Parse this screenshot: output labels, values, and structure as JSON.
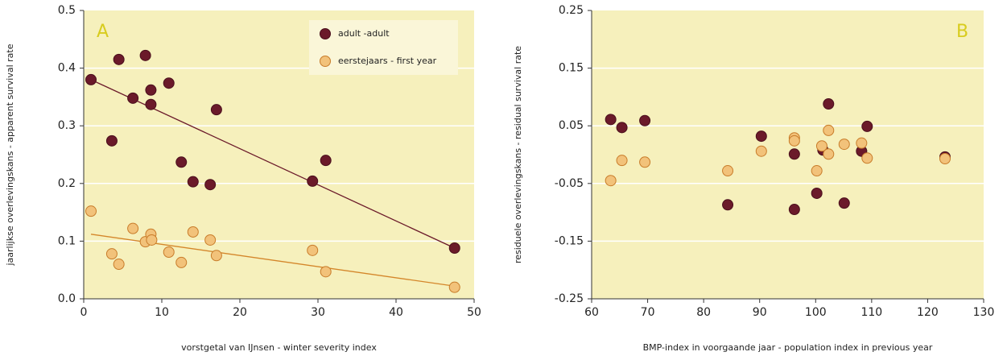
{
  "chart_data": [
    {
      "type": "scatter",
      "label": "A",
      "xlabel": "vorstgetal van IJnsen - winter severity index",
      "ylabel": "jaarlijkse overlevingskans - apparent survival rate",
      "xlim": [
        0,
        50
      ],
      "xticks": [
        0,
        10,
        20,
        30,
        40,
        50
      ],
      "ylim": [
        0,
        0.5
      ],
      "yticks": [
        {
          "value": 0,
          "label": "0.0"
        },
        0.1,
        0.2,
        0.3,
        0.4,
        0.5
      ],
      "grid": true,
      "legend": "upper right",
      "series": [
        {
          "name": "adult -adult",
          "color": "#6b1a2a",
          "edge": "#4a0f1c",
          "x": [
            0.93,
            4.5,
            7.9,
            3.6,
            6.3,
            8.6,
            8.6,
            10.9,
            17.0,
            12.5,
            14.0,
            16.2,
            29.3,
            31.0,
            47.5
          ],
          "y": [
            0.38,
            0.415,
            0.422,
            0.274,
            0.348,
            0.362,
            0.337,
            0.374,
            0.328,
            0.237,
            0.203,
            0.198,
            0.204,
            0.24,
            0.088
          ],
          "trend": {
            "color": "#6b1a2a",
            "x": [
              0.93,
              47.5
            ],
            "y": [
              0.38,
              0.088
            ]
          }
        },
        {
          "name": "eerstejaars - first year",
          "color": "#f2c27a",
          "edge": "#c87c2a",
          "x": [
            0.93,
            6.3,
            3.6,
            4.5,
            7.9,
            8.6,
            8.7,
            10.9,
            12.5,
            14.0,
            16.2,
            17.0,
            29.3,
            31.0,
            47.5
          ],
          "y": [
            0.152,
            0.122,
            0.078,
            0.06,
            0.099,
            0.112,
            0.102,
            0.081,
            0.063,
            0.116,
            0.102,
            0.075,
            0.084,
            0.047,
            0.02
          ],
          "trend": {
            "color": "#d4862a",
            "x": [
              0.93,
              47.5
            ],
            "y": [
              0.112,
              0.022
            ]
          }
        }
      ]
    },
    {
      "type": "scatter",
      "label": "B",
      "xlabel": "BMP-index in voorgaande jaar - population index in previous year",
      "ylabel": "residuele overlevingskans - residual survival rate",
      "xlim": [
        60,
        130
      ],
      "xticks": [
        60,
        70,
        80,
        90,
        100,
        110,
        120,
        130
      ],
      "ylim": [
        -0.25,
        0.25
      ],
      "yticks": [
        -0.25,
        -0.15,
        -0.05,
        0.05,
        0.15,
        0.25
      ],
      "grid": true,
      "series": [
        {
          "color": "#6b1a2a",
          "edge": "#4a0f1c",
          "x": [
            63.4,
            65.4,
            69.5,
            90.3,
            96.2,
            102.3,
            109.2,
            101.3,
            108.2,
            123.1,
            84.3,
            96.2,
            100.2,
            105.1
          ],
          "y": [
            0.061,
            0.047,
            0.059,
            0.032,
            0.001,
            0.088,
            0.049,
            0.008,
            0.006,
            -0.004,
            -0.087,
            -0.095,
            -0.067,
            -0.084
          ]
        },
        {
          "color": "#f2c27a",
          "edge": "#c87c2a",
          "x": [
            63.4,
            65.4,
            69.5,
            84.3,
            90.3,
            96.2,
            96.2,
            100.2,
            101.1,
            102.3,
            102.3,
            105.1,
            108.2,
            109.2,
            123.1
          ],
          "y": [
            -0.045,
            -0.01,
            -0.013,
            -0.028,
            0.006,
            0.029,
            0.024,
            -0.028,
            0.015,
            0.001,
            0.042,
            0.018,
            0.02,
            -0.006,
            -0.007
          ]
        }
      ]
    }
  ]
}
